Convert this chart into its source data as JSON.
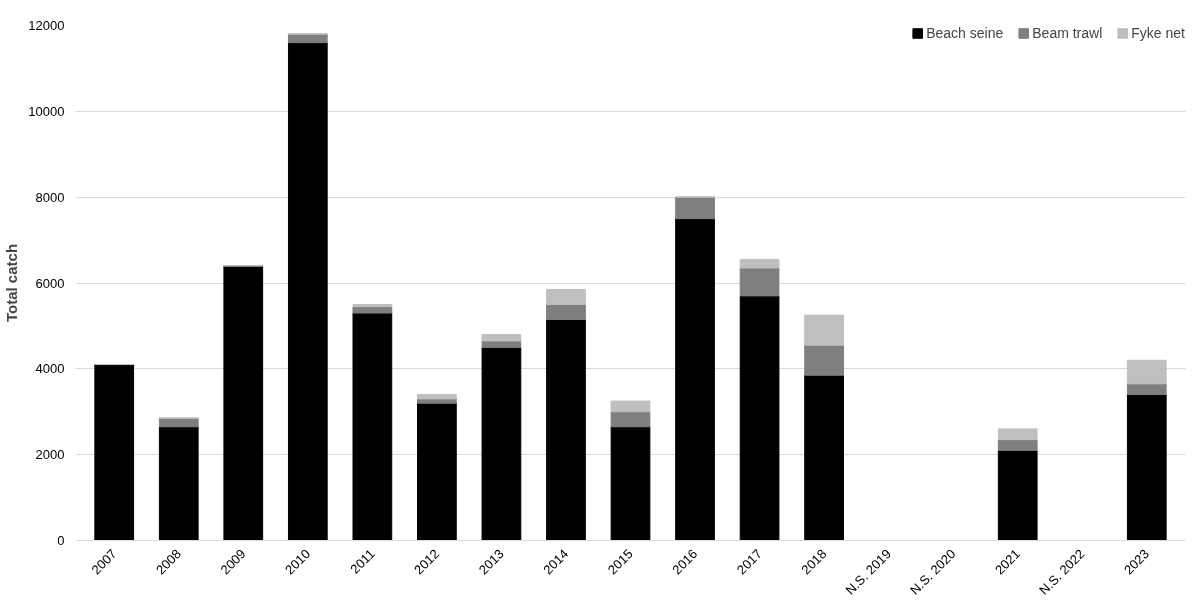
{
  "chart_data": {
    "type": "bar",
    "stacked": true,
    "ylabel": "Total catch",
    "categories": [
      "2007",
      "2008",
      "2009",
      "2010",
      "2011",
      "2012",
      "2013",
      "2014",
      "2015",
      "2016",
      "2017",
      "2018",
      "N.S. 2019",
      "N.S. 2020",
      "2021",
      "N.S. 2022",
      "2023"
    ],
    "series": [
      {
        "name": "Beach seine",
        "color": "#000000",
        "values": [
          4100,
          2650,
          6400,
          11600,
          5300,
          3200,
          4500,
          5150,
          2650,
          7500,
          5700,
          3850,
          null,
          null,
          2100,
          null,
          3400
        ]
      },
      {
        "name": "Beam trawl",
        "color": "#7f7f7f",
        "values": [
          0,
          200,
          0,
          200,
          150,
          100,
          150,
          350,
          350,
          500,
          650,
          700,
          null,
          null,
          250,
          null,
          250
        ]
      },
      {
        "name": "Fyke net",
        "color": "#bfbfbf",
        "values": [
          0,
          0,
          0,
          0,
          50,
          100,
          150,
          350,
          250,
          0,
          200,
          700,
          null,
          null,
          250,
          null,
          550
        ]
      }
    ],
    "ylim": [
      0,
      12000
    ],
    "yticks": [
      0,
      2000,
      4000,
      6000,
      8000,
      10000,
      12000
    ],
    "grid": "y",
    "legend": "top right"
  }
}
